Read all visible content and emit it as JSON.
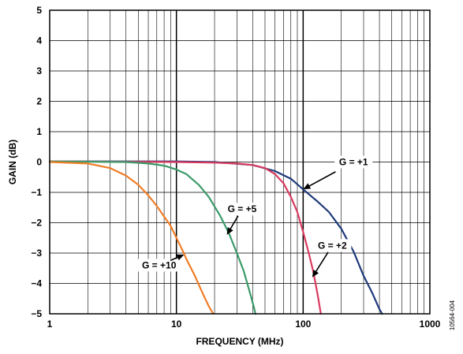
{
  "figure_id": "10564-004",
  "chart_data": {
    "type": "line",
    "title": "",
    "xlabel": "FREQUENCY (MHz)",
    "ylabel": "GAIN (dB)",
    "xscale": "log",
    "xlim": [
      1,
      1000
    ],
    "ylim": [
      -5,
      5
    ],
    "x_ticks": [
      "1",
      "10",
      "100",
      "1000"
    ],
    "y_ticks": [
      "5",
      "4",
      "3",
      "2",
      "1",
      "0",
      "−1",
      "−2",
      "−3",
      "−4",
      "−5"
    ],
    "grid": true,
    "series": [
      {
        "name": "G = +1",
        "color": "#1f3a7a",
        "points": [
          [
            1,
            0.02
          ],
          [
            5,
            0.02
          ],
          [
            10,
            0.02
          ],
          [
            20,
            0.0
          ],
          [
            40,
            -0.1
          ],
          [
            60,
            -0.3
          ],
          [
            80,
            -0.55
          ],
          [
            100,
            -0.9
          ],
          [
            130,
            -1.3
          ],
          [
            160,
            -1.65
          ],
          [
            200,
            -2.2
          ],
          [
            250,
            -2.95
          ],
          [
            300,
            -3.75
          ],
          [
            350,
            -4.3
          ],
          [
            400,
            -4.85
          ],
          [
            420,
            -5.0
          ]
        ]
      },
      {
        "name": "G = +2",
        "color": "#d93b5f",
        "points": [
          [
            1,
            0.02
          ],
          [
            10,
            0.0
          ],
          [
            20,
            -0.02
          ],
          [
            30,
            -0.05
          ],
          [
            40,
            -0.1
          ],
          [
            50,
            -0.2
          ],
          [
            60,
            -0.4
          ],
          [
            70,
            -0.7
          ],
          [
            80,
            -1.15
          ],
          [
            90,
            -1.65
          ],
          [
            100,
            -2.3
          ],
          [
            110,
            -2.95
          ],
          [
            120,
            -3.6
          ],
          [
            130,
            -4.35
          ],
          [
            138,
            -5.0
          ]
        ]
      },
      {
        "name": "G = +5",
        "color": "#3a9a6a",
        "points": [
          [
            1,
            0.02
          ],
          [
            4,
            0.0
          ],
          [
            6,
            -0.05
          ],
          [
            8,
            -0.12
          ],
          [
            10,
            -0.25
          ],
          [
            12,
            -0.4
          ],
          [
            15,
            -0.75
          ],
          [
            18,
            -1.15
          ],
          [
            22,
            -1.75
          ],
          [
            26,
            -2.35
          ],
          [
            30,
            -3.0
          ],
          [
            34,
            -3.6
          ],
          [
            38,
            -4.3
          ],
          [
            41,
            -4.8
          ],
          [
            42,
            -5.0
          ]
        ]
      },
      {
        "name": "G = +10",
        "color": "#f07d26",
        "points": [
          [
            1,
            0.0
          ],
          [
            2,
            -0.05
          ],
          [
            3,
            -0.2
          ],
          [
            4,
            -0.45
          ],
          [
            5,
            -0.75
          ],
          [
            6,
            -1.1
          ],
          [
            7,
            -1.45
          ],
          [
            8,
            -1.8
          ],
          [
            9,
            -2.1
          ],
          [
            10,
            -2.5
          ],
          [
            11,
            -2.85
          ],
          [
            12,
            -3.2
          ],
          [
            14,
            -3.75
          ],
          [
            16,
            -4.3
          ],
          [
            18,
            -4.75
          ],
          [
            19.5,
            -5.0
          ]
        ]
      }
    ],
    "annotations": [
      {
        "text": "G = +1",
        "label_x": 250,
        "label_y": 0.0,
        "arrow_to_x": 100,
        "arrow_to_y": -0.9
      },
      {
        "text": "G = +2",
        "label_x": 170,
        "label_y": -2.75,
        "arrow_to_x": 118,
        "arrow_to_y": -3.8
      },
      {
        "text": "G = +5",
        "label_x": 33,
        "label_y": -1.55,
        "arrow_to_x": 25,
        "arrow_to_y": -2.4
      },
      {
        "text": "G = +10",
        "label_x": 7.3,
        "label_y": -3.4,
        "arrow_to_x": 11.5,
        "arrow_to_y": -3.05
      }
    ]
  }
}
